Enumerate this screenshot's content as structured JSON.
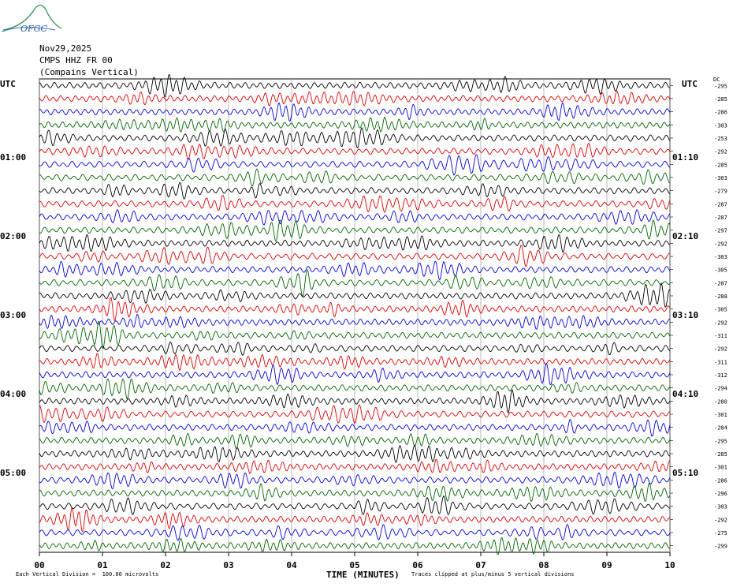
{
  "logo": {
    "text": "OFGC"
  },
  "header": {
    "date": "Nov29,2025",
    "station": "CMPS HHZ FR 00",
    "location": "(Compains Vertical)"
  },
  "utc_left": "UTC",
  "utc_right": "UTC",
  "dc_label": "DC",
  "footer": {
    "division": "Each Vertical Division =  100.00 microvolts",
    "clip": "Traces clipped at plus/minus 5 vertical divisions"
  },
  "colors": {
    "black": "#000000",
    "red": "#dd0000",
    "blue": "#0000dd",
    "green": "#006600"
  },
  "chart_data": {
    "type": "line",
    "title": "",
    "xlabel": "TIME (MINUTES)",
    "ylabel": "",
    "xlim": [
      0,
      10
    ],
    "x_ticks": [
      "00",
      "01",
      "02",
      "03",
      "04",
      "05",
      "06",
      "07",
      "08",
      "09",
      "10"
    ],
    "left_time_labels": [
      "01:00",
      "02:00",
      "03:00",
      "04:00",
      "05:00"
    ],
    "right_time_labels": [
      "01:10",
      "02:10",
      "03:10",
      "04:10",
      "05:10"
    ],
    "trace_color_cycle": [
      "black",
      "red",
      "blue",
      "green"
    ],
    "traces_count": 36,
    "dc_offsets": [
      -295,
      -285,
      -286,
      -303,
      -253,
      -292,
      -285,
      -303,
      -279,
      -287,
      -287,
      -297,
      -292,
      -303,
      -305,
      -287,
      -288,
      -305,
      -292,
      -311,
      -292,
      -311,
      -312,
      -294,
      -280,
      -301,
      -284,
      -295,
      -285,
      -301,
      -286,
      -296,
      -303,
      -292,
      -275,
      -299
    ]
  }
}
